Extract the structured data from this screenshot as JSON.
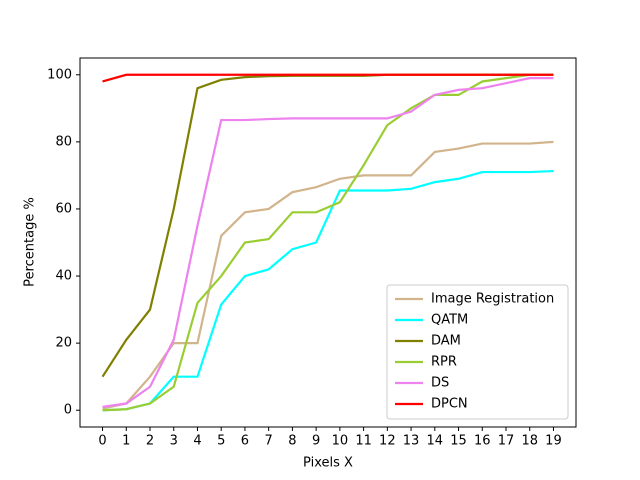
{
  "chart_data": {
    "type": "line",
    "xlabel": "Pixels X",
    "ylabel": "Percentage %",
    "x": [
      0,
      1,
      2,
      3,
      4,
      5,
      6,
      7,
      8,
      9,
      10,
      11,
      12,
      13,
      14,
      15,
      16,
      17,
      18,
      19
    ],
    "xlim": [
      -0.95,
      19.95
    ],
    "xticks": [
      0,
      1,
      2,
      3,
      4,
      5,
      6,
      7,
      8,
      9,
      10,
      11,
      12,
      13,
      14,
      15,
      16,
      17,
      18,
      19
    ],
    "ylim": [
      -5,
      105
    ],
    "yticks": [
      0,
      20,
      40,
      60,
      80,
      100
    ],
    "grid": false,
    "legend": "lower right",
    "series": [
      {
        "name": "Image Registration",
        "color": "#d2b48c",
        "values": [
          0.5,
          2,
          10,
          20,
          20,
          52,
          59,
          60,
          65,
          66.5,
          69,
          70,
          70,
          70,
          77,
          78,
          79.5,
          79.5,
          79.5,
          80
        ]
      },
      {
        "name": "QATM",
        "color": "#00ffff",
        "values": [
          0,
          0.3,
          2,
          10,
          10,
          31.5,
          40,
          42,
          48,
          50,
          65.5,
          65.5,
          65.5,
          66,
          68,
          69,
          71,
          71,
          71,
          71.3
        ]
      },
      {
        "name": "DAM",
        "color": "#808000",
        "values": [
          10,
          21,
          30,
          60,
          96,
          98.5,
          99.3,
          99.6,
          99.7,
          99.7,
          99.7,
          99.7,
          100,
          100,
          100,
          100,
          100,
          100,
          100,
          100
        ]
      },
      {
        "name": "RPR",
        "color": "#9acd32",
        "values": [
          0,
          0.3,
          2,
          7,
          32,
          40,
          50,
          51,
          59,
          59,
          62,
          73,
          85,
          90,
          94,
          94,
          98,
          99,
          100,
          100
        ]
      },
      {
        "name": "DS",
        "color": "#ee82ee",
        "values": [
          1,
          2,
          7,
          21,
          55,
          86.5,
          86.5,
          86.8,
          87,
          87,
          87,
          87,
          87,
          89,
          94,
          95.5,
          96,
          97.5,
          99,
          99
        ]
      },
      {
        "name": "DPCN",
        "color": "#ff0000",
        "values": [
          98,
          100,
          100,
          100,
          100,
          100,
          100,
          100,
          100,
          100,
          100,
          100,
          100,
          100,
          100,
          100,
          100,
          100,
          100,
          100
        ]
      }
    ]
  }
}
